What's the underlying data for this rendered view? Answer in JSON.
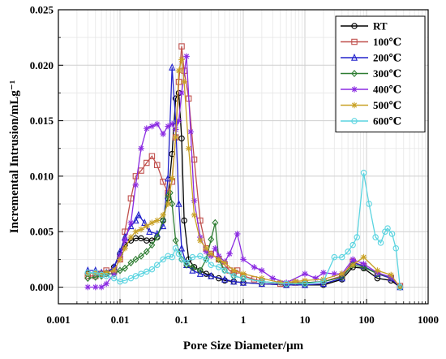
{
  "chart_data": {
    "type": "line",
    "xlabel": "Pore Size Diameter/μm",
    "ylabel": "Incremental Intrusion/mLg⁻¹",
    "x_scale": "log",
    "xlim": [
      0.001,
      1000
    ],
    "ylim": [
      -0.0015,
      0.025
    ],
    "x_ticks": [
      0.001,
      0.01,
      0.1,
      1,
      10,
      100,
      1000
    ],
    "x_tick_labels": [
      "0.001",
      "0.01",
      "0.1",
      "1",
      "10",
      "100",
      "1000"
    ],
    "y_ticks": [
      0,
      0.005,
      0.01,
      0.015,
      0.02,
      0.025
    ],
    "y_tick_labels": [
      "0.000",
      "0.005",
      "0.010",
      "0.015",
      "0.020",
      "0.025"
    ],
    "grid": true,
    "legend_position": "top-right",
    "series": [
      {
        "name": "RT",
        "color": "#000000",
        "marker": "circle",
        "points": [
          [
            0.003,
            0.0012
          ],
          [
            0.004,
            0.0013
          ],
          [
            0.005,
            0.0011
          ],
          [
            0.006,
            0.0012
          ],
          [
            0.008,
            0.0018
          ],
          [
            0.01,
            0.003
          ],
          [
            0.012,
            0.0038
          ],
          [
            0.015,
            0.0042
          ],
          [
            0.018,
            0.0044
          ],
          [
            0.022,
            0.0044
          ],
          [
            0.027,
            0.0042
          ],
          [
            0.033,
            0.0042
          ],
          [
            0.04,
            0.0045
          ],
          [
            0.05,
            0.006
          ],
          [
            0.06,
            0.008
          ],
          [
            0.07,
            0.012
          ],
          [
            0.08,
            0.017
          ],
          [
            0.09,
            0.0175
          ],
          [
            0.1,
            0.0134
          ],
          [
            0.11,
            0.006
          ],
          [
            0.13,
            0.0025
          ],
          [
            0.16,
            0.0018
          ],
          [
            0.2,
            0.0015
          ],
          [
            0.25,
            0.0012
          ],
          [
            0.3,
            0.001
          ],
          [
            0.4,
            0.0008
          ],
          [
            0.5,
            0.0006
          ],
          [
            0.7,
            0.0005
          ],
          [
            1,
            0.0004
          ],
          [
            2,
            0.0003
          ],
          [
            5,
            0.0002
          ],
          [
            10,
            0.0002
          ],
          [
            20,
            0.0002
          ],
          [
            40,
            0.0007
          ],
          [
            60,
            0.0018
          ],
          [
            90,
            0.0017
          ],
          [
            150,
            0.0008
          ],
          [
            250,
            0.0006
          ],
          [
            350,
            0
          ]
        ]
      },
      {
        "name": "100℃",
        "color": "#c0504d",
        "marker": "square",
        "points": [
          [
            0.003,
            0.001
          ],
          [
            0.004,
            0.001
          ],
          [
            0.005,
            0.0012
          ],
          [
            0.006,
            0.0015
          ],
          [
            0.008,
            0.0015
          ],
          [
            0.01,
            0.0025
          ],
          [
            0.012,
            0.005
          ],
          [
            0.015,
            0.008
          ],
          [
            0.018,
            0.01
          ],
          [
            0.022,
            0.0105
          ],
          [
            0.027,
            0.0112
          ],
          [
            0.033,
            0.0118
          ],
          [
            0.04,
            0.011
          ],
          [
            0.05,
            0.0095
          ],
          [
            0.06,
            0.0085
          ],
          [
            0.07,
            0.0095
          ],
          [
            0.08,
            0.0135
          ],
          [
            0.09,
            0.0185
          ],
          [
            0.1,
            0.0217
          ],
          [
            0.11,
            0.0195
          ],
          [
            0.13,
            0.017
          ],
          [
            0.16,
            0.0115
          ],
          [
            0.2,
            0.006
          ],
          [
            0.25,
            0.0035
          ],
          [
            0.3,
            0.003
          ],
          [
            0.4,
            0.0025
          ],
          [
            0.5,
            0.002
          ],
          [
            0.6,
            0.0015
          ],
          [
            0.7,
            0.0013
          ],
          [
            0.8,
            0.0015
          ],
          [
            1,
            0.001
          ],
          [
            1.5,
            0.0007
          ],
          [
            2,
            0.0005
          ],
          [
            4,
            0.0003
          ],
          [
            7,
            0.0004
          ],
          [
            10,
            0.0004
          ],
          [
            20,
            0.0005
          ],
          [
            40,
            0.001
          ],
          [
            60,
            0.0023
          ],
          [
            90,
            0.0019
          ],
          [
            150,
            0.0012
          ],
          [
            250,
            0.0008
          ],
          [
            350,
            0.0001
          ]
        ]
      },
      {
        "name": "200℃",
        "color": "#2222cc",
        "marker": "triangle",
        "points": [
          [
            0.003,
            0.0015
          ],
          [
            0.004,
            0.0015
          ],
          [
            0.005,
            0.0013
          ],
          [
            0.006,
            0.0013
          ],
          [
            0.008,
            0.0018
          ],
          [
            0.01,
            0.0032
          ],
          [
            0.012,
            0.0045
          ],
          [
            0.015,
            0.0055
          ],
          [
            0.018,
            0.006
          ],
          [
            0.02,
            0.0065
          ],
          [
            0.025,
            0.0058
          ],
          [
            0.03,
            0.005
          ],
          [
            0.04,
            0.0048
          ],
          [
            0.05,
            0.0055
          ],
          [
            0.06,
            0.0098
          ],
          [
            0.07,
            0.0198
          ],
          [
            0.08,
            0.015
          ],
          [
            0.09,
            0.0075
          ],
          [
            0.1,
            0.0035
          ],
          [
            0.12,
            0.002
          ],
          [
            0.15,
            0.0015
          ],
          [
            0.2,
            0.0012
          ],
          [
            0.3,
            0.001
          ],
          [
            0.5,
            0.0007
          ],
          [
            0.7,
            0.0005
          ],
          [
            1,
            0.0004
          ],
          [
            2,
            0.0003
          ],
          [
            5,
            0.0002
          ],
          [
            10,
            0.0002
          ],
          [
            20,
            0.0003
          ],
          [
            40,
            0.0008
          ],
          [
            60,
            0.0022
          ],
          [
            90,
            0.0019
          ],
          [
            150,
            0.0012
          ],
          [
            250,
            0.0008
          ],
          [
            350,
            0
          ]
        ]
      },
      {
        "name": "300℃",
        "color": "#2e7d32",
        "marker": "diamond",
        "points": [
          [
            0.003,
            0.0008
          ],
          [
            0.004,
            0.0009
          ],
          [
            0.005,
            0.001
          ],
          [
            0.006,
            0.0012
          ],
          [
            0.008,
            0.0012
          ],
          [
            0.01,
            0.0015
          ],
          [
            0.012,
            0.0017
          ],
          [
            0.015,
            0.0022
          ],
          [
            0.018,
            0.0025
          ],
          [
            0.022,
            0.0028
          ],
          [
            0.027,
            0.0032
          ],
          [
            0.033,
            0.0038
          ],
          [
            0.04,
            0.0045
          ],
          [
            0.05,
            0.006
          ],
          [
            0.06,
            0.0082
          ],
          [
            0.065,
            0.0085
          ],
          [
            0.07,
            0.0075
          ],
          [
            0.08,
            0.0042
          ],
          [
            0.1,
            0.0025
          ],
          [
            0.12,
            0.002
          ],
          [
            0.15,
            0.0018
          ],
          [
            0.2,
            0.0015
          ],
          [
            0.25,
            0.0025
          ],
          [
            0.3,
            0.0043
          ],
          [
            0.35,
            0.0058
          ],
          [
            0.4,
            0.0025
          ],
          [
            0.5,
            0.0015
          ],
          [
            0.7,
            0.001
          ],
          [
            1,
            0.0008
          ],
          [
            2,
            0.0005
          ],
          [
            5,
            0.0003
          ],
          [
            10,
            0.0004
          ],
          [
            20,
            0.0005
          ],
          [
            40,
            0.0009
          ],
          [
            60,
            0.002
          ],
          [
            90,
            0.0018
          ],
          [
            150,
            0.0012
          ],
          [
            250,
            0.0009
          ],
          [
            350,
            0
          ]
        ]
      },
      {
        "name": "400℃",
        "color": "#8b2be2",
        "marker": "star",
        "points": [
          [
            0.003,
            0
          ],
          [
            0.004,
            0
          ],
          [
            0.005,
            0
          ],
          [
            0.006,
            0.0003
          ],
          [
            0.008,
            0.0012
          ],
          [
            0.01,
            0.0028
          ],
          [
            0.012,
            0.0042
          ],
          [
            0.015,
            0.0058
          ],
          [
            0.018,
            0.0092
          ],
          [
            0.022,
            0.0125
          ],
          [
            0.027,
            0.0143
          ],
          [
            0.033,
            0.0145
          ],
          [
            0.04,
            0.0147
          ],
          [
            0.05,
            0.0138
          ],
          [
            0.06,
            0.0145
          ],
          [
            0.07,
            0.0147
          ],
          [
            0.08,
            0.0142
          ],
          [
            0.09,
            0.015
          ],
          [
            0.1,
            0.0175
          ],
          [
            0.12,
            0.0208
          ],
          [
            0.14,
            0.014
          ],
          [
            0.16,
            0.0078
          ],
          [
            0.2,
            0.0045
          ],
          [
            0.25,
            0.0032
          ],
          [
            0.3,
            0.0028
          ],
          [
            0.35,
            0.0035
          ],
          [
            0.4,
            0.0028
          ],
          [
            0.5,
            0.0023
          ],
          [
            0.6,
            0.003
          ],
          [
            0.8,
            0.0048
          ],
          [
            1,
            0.0025
          ],
          [
            1.5,
            0.0018
          ],
          [
            2,
            0.0015
          ],
          [
            3,
            0.0008
          ],
          [
            5,
            0.0004
          ],
          [
            10,
            0.0012
          ],
          [
            15,
            0.0008
          ],
          [
            20,
            0.0013
          ],
          [
            30,
            0.0012
          ],
          [
            40,
            0.0012
          ],
          [
            60,
            0.0025
          ],
          [
            90,
            0.0021
          ],
          [
            150,
            0.0013
          ],
          [
            250,
            0.0009
          ],
          [
            350,
            0
          ]
        ]
      },
      {
        "name": "500℃",
        "color": "#c9a227",
        "marker": "star",
        "points": [
          [
            0.003,
            0.0012
          ],
          [
            0.004,
            0.0013
          ],
          [
            0.005,
            0.0012
          ],
          [
            0.006,
            0.0013
          ],
          [
            0.008,
            0.0015
          ],
          [
            0.01,
            0.0025
          ],
          [
            0.012,
            0.0035
          ],
          [
            0.015,
            0.0045
          ],
          [
            0.018,
            0.005
          ],
          [
            0.022,
            0.0052
          ],
          [
            0.027,
            0.0055
          ],
          [
            0.033,
            0.0058
          ],
          [
            0.04,
            0.006
          ],
          [
            0.05,
            0.0065
          ],
          [
            0.06,
            0.0075
          ],
          [
            0.07,
            0.0098
          ],
          [
            0.08,
            0.0135
          ],
          [
            0.09,
            0.0195
          ],
          [
            0.1,
            0.0205
          ],
          [
            0.11,
            0.0185
          ],
          [
            0.13,
            0.0125
          ],
          [
            0.16,
            0.0065
          ],
          [
            0.2,
            0.0042
          ],
          [
            0.25,
            0.0035
          ],
          [
            0.3,
            0.003
          ],
          [
            0.4,
            0.0025
          ],
          [
            0.5,
            0.0022
          ],
          [
            0.7,
            0.0015
          ],
          [
            1,
            0.0012
          ],
          [
            2,
            0.0008
          ],
          [
            4,
            0.0004
          ],
          [
            7,
            0.0005
          ],
          [
            10,
            0.0006
          ],
          [
            20,
            0.0007
          ],
          [
            40,
            0.0012
          ],
          [
            60,
            0.002
          ],
          [
            90,
            0.0027
          ],
          [
            150,
            0.0015
          ],
          [
            250,
            0.0011
          ],
          [
            350,
            0
          ]
        ]
      },
      {
        "name": "600℃",
        "color": "#5ad4e0",
        "marker": "circle",
        "points": [
          [
            0.003,
            0.0013
          ],
          [
            0.004,
            0.0013
          ],
          [
            0.005,
            0.0011
          ],
          [
            0.006,
            0.001
          ],
          [
            0.008,
            0.0008
          ],
          [
            0.01,
            0.0005
          ],
          [
            0.012,
            0.0006
          ],
          [
            0.015,
            0.0008
          ],
          [
            0.018,
            0.001
          ],
          [
            0.022,
            0.0012
          ],
          [
            0.027,
            0.0014
          ],
          [
            0.033,
            0.0016
          ],
          [
            0.04,
            0.002
          ],
          [
            0.05,
            0.0025
          ],
          [
            0.06,
            0.0028
          ],
          [
            0.07,
            0.0027
          ],
          [
            0.08,
            0.0035
          ],
          [
            0.09,
            0.003
          ],
          [
            0.1,
            0.0025
          ],
          [
            0.12,
            0.0022
          ],
          [
            0.15,
            0.0027
          ],
          [
            0.2,
            0.0028
          ],
          [
            0.25,
            0.0025
          ],
          [
            0.3,
            0.002
          ],
          [
            0.4,
            0.0018
          ],
          [
            0.5,
            0.0015
          ],
          [
            0.7,
            0.001
          ],
          [
            1,
            0.0008
          ],
          [
            2,
            0.0005
          ],
          [
            5,
            0.0003
          ],
          [
            10,
            0.0003
          ],
          [
            20,
            0.0005
          ],
          [
            30,
            0.0027
          ],
          [
            40,
            0.0027
          ],
          [
            50,
            0.0032
          ],
          [
            60,
            0.0038
          ],
          [
            70,
            0.0045
          ],
          [
            90,
            0.0103
          ],
          [
            110,
            0.0075
          ],
          [
            140,
            0.0045
          ],
          [
            170,
            0.004
          ],
          [
            200,
            0.005
          ],
          [
            220,
            0.0053
          ],
          [
            260,
            0.0048
          ],
          [
            300,
            0.0035
          ],
          [
            350,
            0
          ]
        ]
      }
    ]
  }
}
